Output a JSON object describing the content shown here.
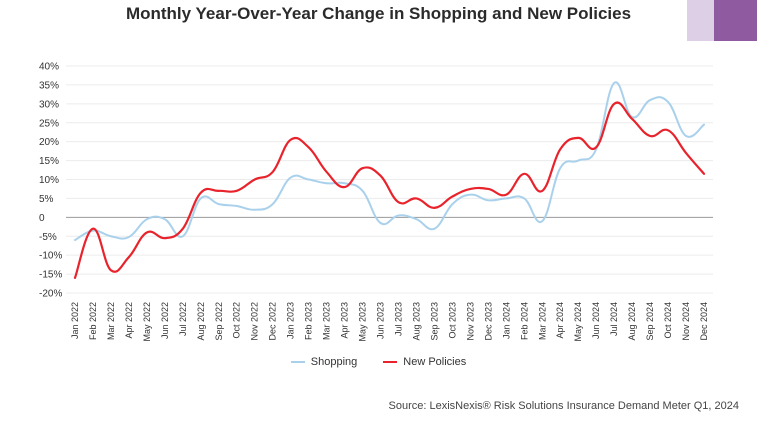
{
  "chart_data": {
    "type": "line",
    "title": "Monthly Year-Over-Year Change in Shopping and New Policies",
    "xlabel": "",
    "ylabel": "",
    "ylim": [
      -20,
      40
    ],
    "ytick_labels": [
      "-20%",
      "-15%",
      "-10%",
      "-5%",
      "0",
      "5%",
      "10%",
      "15%",
      "20%",
      "25%",
      "30%",
      "35%",
      "40%"
    ],
    "ytick_values": [
      -20,
      -15,
      -10,
      -5,
      0,
      5,
      10,
      15,
      20,
      25,
      30,
      35,
      40
    ],
    "categories": [
      "Jan 2022",
      "Feb 2022",
      "Mar 2022",
      "Apr 2022",
      "May 2022",
      "Jun 2022",
      "Jul 2022",
      "Aug 2022",
      "Sep 2022",
      "Oct 2022",
      "Nov 2022",
      "Dec 2022",
      "Jan 2023",
      "Feb 2023",
      "Mar 2023",
      "Apr 2023",
      "May 2023",
      "Jun 2023",
      "Jul 2023",
      "Aug 2023",
      "Sep 2023",
      "Oct 2023",
      "Nov 2023",
      "Dec 2023",
      "Jan 2024",
      "Feb 2024",
      "Mar 2024",
      "Apr 2024",
      "May 2024",
      "Jun 2024",
      "Jul 2024",
      "Aug 2024",
      "Sep 2024",
      "Oct 2024",
      "Nov 2024",
      "Dec 2024"
    ],
    "series": [
      {
        "name": "Shopping",
        "color": "#a9d1ec",
        "values": [
          -6,
          -3.5,
          -5,
          -5.2,
          -0.5,
          -0.5,
          -5,
          5,
          3.5,
          3,
          2,
          3.5,
          10.5,
          10,
          9,
          9,
          7,
          -1.5,
          0.5,
          -0.5,
          -3,
          3.5,
          6,
          4.5,
          5,
          5,
          -1,
          13,
          15,
          18,
          35.5,
          26.5,
          31,
          30.5,
          21.5,
          24.5
        ]
      },
      {
        "name": "New Policies",
        "color": "#e8232c",
        "values": [
          -16,
          -3,
          -14,
          -10.5,
          -4,
          -5.5,
          -3,
          6.5,
          7,
          7,
          10,
          12,
          20.5,
          18.5,
          12,
          8,
          13,
          11,
          4,
          5,
          2.5,
          5.5,
          7.5,
          7.5,
          6,
          11.5,
          7,
          18,
          21,
          18.5,
          30,
          26,
          21.5,
          23,
          17,
          11.5
        ]
      }
    ]
  },
  "legend": {
    "items": [
      {
        "label": "Shopping",
        "color": "#a9d1ec"
      },
      {
        "label": "New Policies",
        "color": "#e8232c"
      }
    ]
  },
  "source": "Source: LexisNexis® Risk Solutions Insurance Demand Meter Q1, 2024"
}
